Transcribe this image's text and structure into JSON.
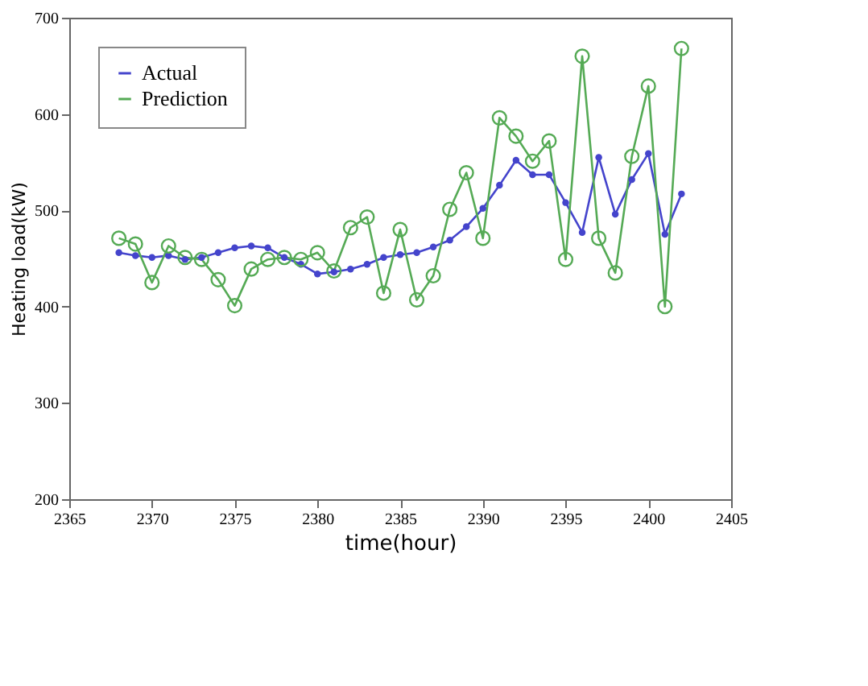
{
  "chart_data": {
    "type": "line",
    "xlabel": "time(hour)",
    "ylabel": "Heating load(kW)",
    "x": [
      2368,
      2369,
      2370,
      2371,
      2372,
      2373,
      2374,
      2375,
      2376,
      2377,
      2378,
      2379,
      2380,
      2381,
      2382,
      2383,
      2384,
      2385,
      2386,
      2387,
      2388,
      2389,
      2390,
      2391,
      2392,
      2393,
      2394,
      2395,
      2396,
      2397,
      2398,
      2399,
      2400,
      2401,
      2402
    ],
    "series": [
      {
        "name": "Actual",
        "color": "#4444cc",
        "values": [
          456,
          453,
          451,
          453,
          449,
          451,
          456,
          461,
          463,
          461,
          451,
          444,
          434,
          436,
          439,
          444,
          451,
          454,
          456,
          462,
          469,
          483,
          502,
          526,
          552,
          537,
          537,
          508,
          477,
          555,
          496,
          532,
          559,
          475,
          517
        ]
      },
      {
        "name": "Prediction",
        "color": "#55aa55",
        "values": [
          471,
          465,
          425,
          463,
          451,
          449,
          428,
          401,
          439,
          449,
          451,
          449,
          456,
          437,
          482,
          493,
          414,
          480,
          407,
          432,
          501,
          539,
          471,
          596,
          577,
          551,
          572,
          449,
          660,
          471,
          435,
          556,
          629,
          400,
          668
        ]
      }
    ],
    "xlim": [
      2365,
      2405
    ],
    "xticks": [
      2365,
      2370,
      2375,
      2380,
      2385,
      2390,
      2395,
      2400,
      2405
    ],
    "ylim": [
      200,
      700
    ],
    "yticks": [
      200,
      300,
      400,
      500,
      600,
      700
    ],
    "grid": false,
    "legend": "top left",
    "marker": "circle",
    "line_style": "solid"
  }
}
